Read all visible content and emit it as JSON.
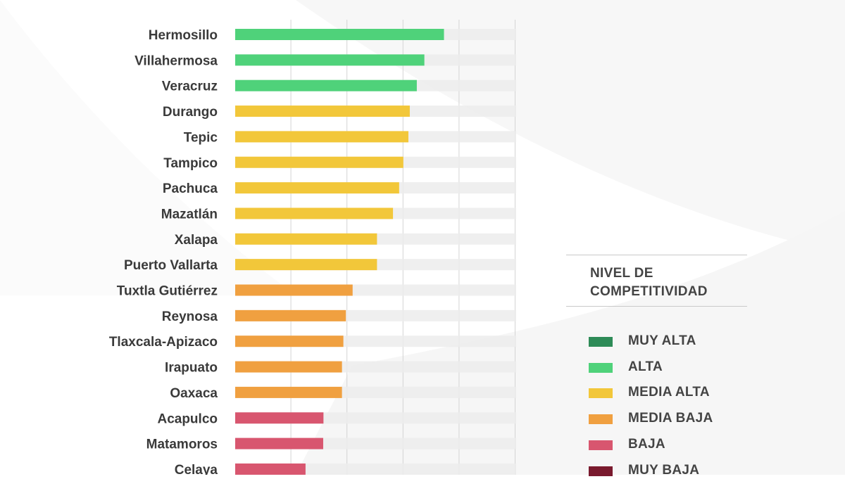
{
  "colors": {
    "muy_alta": "#2e8b57",
    "alta": "#4fd27a",
    "media_alta": "#f2c73a",
    "media_baja": "#f0a040",
    "baja": "#d8566f",
    "muy_baja": "#7a1a2e",
    "track": "#ececec",
    "grid": "#d4d4d4",
    "label": "#3a3a3a"
  },
  "legend": {
    "title": "NIVEL DE COMPETITIVIDAD",
    "items": [
      {
        "label": "MUY ALTA",
        "color": "#2e8b57"
      },
      {
        "label": "ALTA",
        "color": "#4fd27a"
      },
      {
        "label": "MEDIA ALTA",
        "color": "#f2c73a"
      },
      {
        "label": "MEDIA BAJA",
        "color": "#f0a040"
      },
      {
        "label": "BAJA",
        "color": "#d8566f"
      },
      {
        "label": "MUY BAJA",
        "color": "#7a1a2e"
      }
    ]
  },
  "chart_data": {
    "type": "bar",
    "orientation": "horizontal",
    "categories": [
      "Hermosillo",
      "Villahermosa",
      "Veracruz",
      "Durango",
      "Tepic",
      "Tampico",
      "Pachuca",
      "Mazatlán",
      "Xalapa",
      "Puerto Vallarta",
      "Tuxtla Gutiérrez",
      "Reynosa",
      "Tlaxcala-Apizaco",
      "Irapuato",
      "Oaxaca",
      "Acapulco",
      "Matamoros",
      "Celaya"
    ],
    "values": [
      74.5,
      67.5,
      64.8,
      62.3,
      61.8,
      60.0,
      58.5,
      56.3,
      50.6,
      50.6,
      41.9,
      39.5,
      38.6,
      38.1,
      38.1,
      31.5,
      31.4,
      25.1
    ],
    "levels": [
      "ALTA",
      "ALTA",
      "ALTA",
      "MEDIA ALTA",
      "MEDIA ALTA",
      "MEDIA ALTA",
      "MEDIA ALTA",
      "MEDIA ALTA",
      "MEDIA ALTA",
      "MEDIA ALTA",
      "MEDIA BAJA",
      "MEDIA BAJA",
      "MEDIA BAJA",
      "MEDIA BAJA",
      "MEDIA BAJA",
      "BAJA",
      "BAJA",
      "BAJA"
    ],
    "xlim": [
      0,
      100
    ],
    "grid": true,
    "legend_position": "right",
    "title": "",
    "xlabel": "",
    "ylabel": ""
  }
}
